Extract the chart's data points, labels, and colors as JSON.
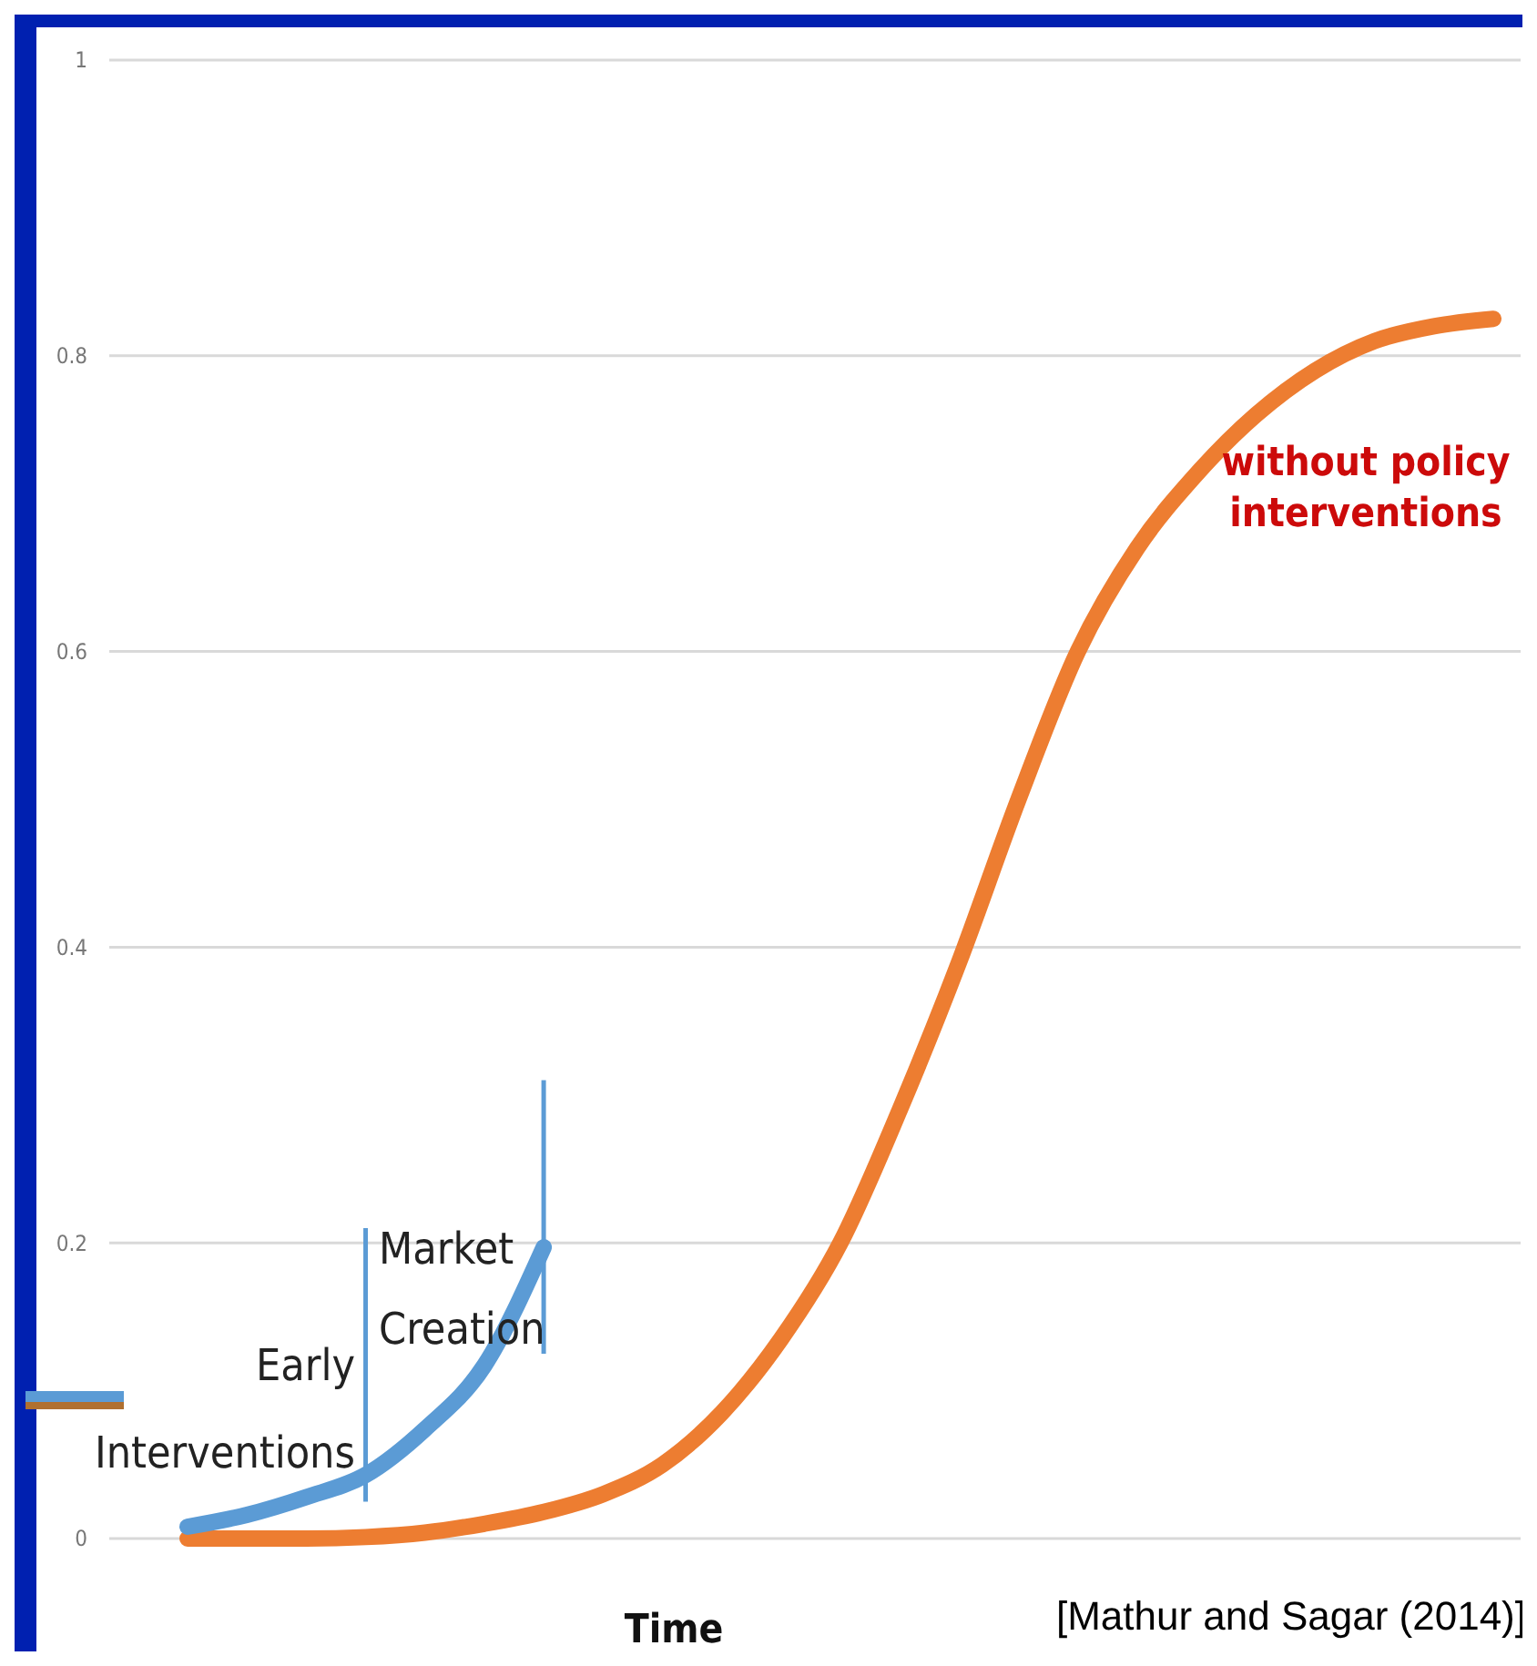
{
  "chart_data": {
    "type": "line",
    "xlabel": "Time",
    "categories": [
      null,
      null,
      null,
      null,
      null,
      null,
      null,
      null,
      null,
      null,
      null,
      null,
      null,
      null,
      null,
      null,
      null,
      null,
      null,
      null,
      null,
      null,
      null
    ],
    "series": [
      {
        "color": "#ed7d31",
        "values": [
          0,
          0,
          0,
          0.001,
          0.004,
          0.01,
          0.018,
          0.03,
          0.05,
          0.085,
          0.135,
          0.2,
          0.29,
          0.39,
          0.5,
          0.6,
          0.67,
          0.72,
          0.76,
          0.79,
          0.81,
          0.82,
          0.825
        ]
      },
      {
        "color": "#5b9bd5",
        "values": [
          0.008,
          0.016,
          0.028,
          0.043,
          0.074,
          0.117,
          0.197,
          null,
          null,
          null,
          null,
          null,
          null,
          null,
          null,
          null,
          null,
          null,
          null,
          null,
          null,
          null,
          null
        ]
      }
    ],
    "ylim": [
      0,
      1
    ],
    "yticks": [
      0,
      0.2,
      0.4,
      0.6,
      0.8,
      1
    ],
    "grid": "y",
    "line_style": "solid",
    "annotations": [
      "Early\nInterventions",
      "Market\nCreation",
      "without policy\ninterventions",
      "[Mathur and Sagar (2014)]"
    ]
  }
}
